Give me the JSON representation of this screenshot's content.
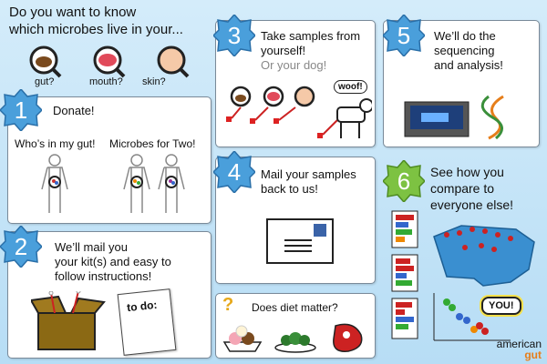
{
  "intro": {
    "line1": "Do you want to know",
    "line2": "which microbes live in your..."
  },
  "body_sites": [
    {
      "label": "gut?"
    },
    {
      "label": "mouth?"
    },
    {
      "label": "skin?"
    }
  ],
  "steps": [
    {
      "number": "1",
      "title": "Donate!",
      "subs": [
        "Who’s in my gut!",
        "Microbes for Two!"
      ]
    },
    {
      "number": "2",
      "title_lines": [
        "We’ll mail you",
        "your kit(s) and easy to",
        "follow instructions!"
      ],
      "note": "to do:"
    },
    {
      "number": "3",
      "title_lines": [
        "Take samples from",
        "yourself!"
      ],
      "subtitle": "Or your dog!",
      "bubble": "woof!"
    },
    {
      "number": "4",
      "title_lines": [
        "Mail your samples",
        "back to us!"
      ]
    },
    {
      "number": "5",
      "title_lines": [
        "We’ll do the",
        "sequencing",
        "and analysis!"
      ]
    },
    {
      "number": "6",
      "title_lines": [
        "See how you",
        "compare to",
        "everyone else!"
      ],
      "you_label": "YOU!"
    }
  ],
  "diet": {
    "question": "Does diet matter?",
    "mark": "?"
  },
  "logo": {
    "line1": "american",
    "line2": "gut"
  },
  "colors": {
    "badge_blue": "#4a9fdb",
    "badge_green": "#7dc242",
    "panel_border": "#7a8a99"
  }
}
